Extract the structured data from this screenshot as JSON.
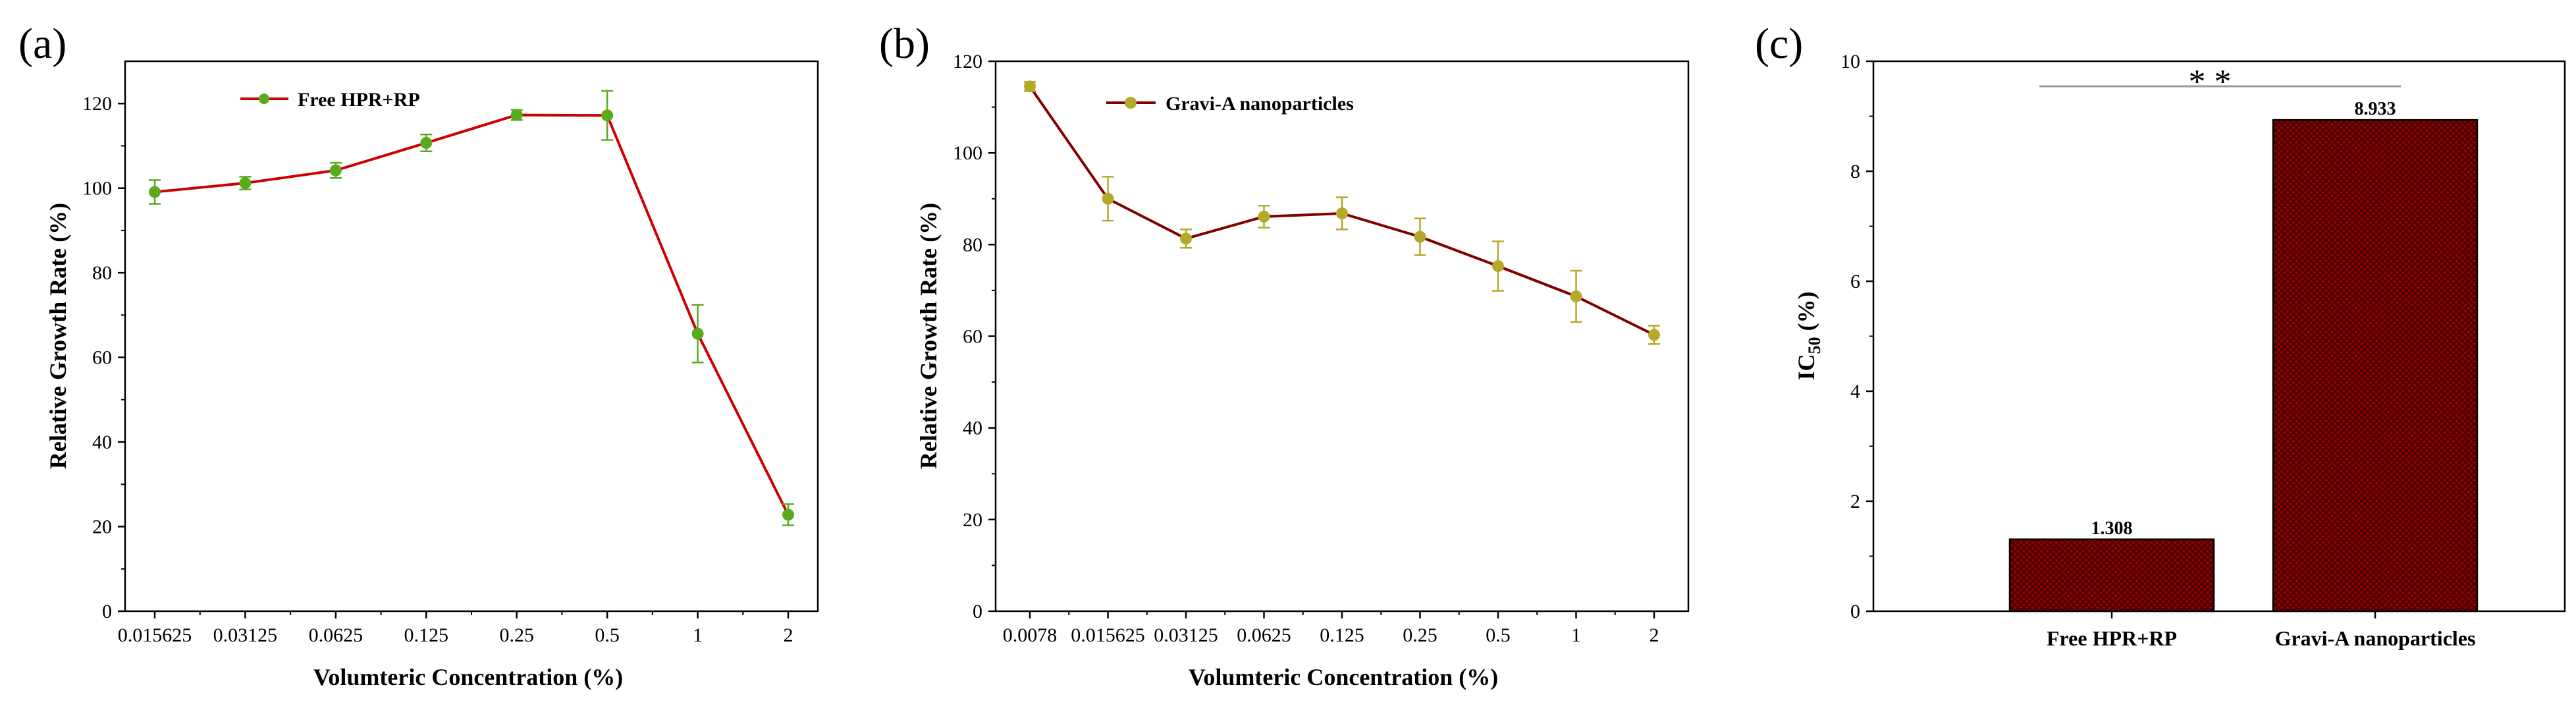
{
  "figure": {
    "panels": [
      {
        "panel_label": "(a)",
        "ylabel": "Relative Growth Rate (%)",
        "xlabel": "Volumteric Concentration (%)",
        "legend": "Free HPR+RP"
      },
      {
        "panel_label": "(b)",
        "ylabel": "Relative Growth Rate (%)",
        "xlabel": "Volumteric Concentration (%)",
        "legend": "Gravi-A nanoparticles"
      },
      {
        "panel_label": "(c)",
        "ylabel_main": "IC",
        "ylabel_sub": "50",
        "ylabel_unit": " (%)",
        "significance": "* *"
      }
    ]
  },
  "chart_data": [
    {
      "type": "line",
      "title": "(a)",
      "xlabel": "Volumteric Concentration (%)",
      "ylabel": "Relative Growth Rate (%)",
      "categories": [
        "0.015625",
        "0.03125",
        "0.0625",
        "0.125",
        "0.25",
        "0.5",
        "1",
        "2"
      ],
      "series": [
        {
          "name": "Free HPR+RP",
          "values": [
            99.1,
            101.2,
            104.2,
            110.7,
            117.3,
            117.2,
            65.6,
            22.8
          ],
          "errors": [
            2.8,
            1.5,
            1.8,
            2.0,
            1.2,
            5.8,
            6.8,
            2.5
          ],
          "color": "#cc0000",
          "marker_color": "#5aaa1e"
        }
      ],
      "ylim": [
        0,
        130
      ],
      "yticks": [
        0,
        20,
        40,
        60,
        80,
        100,
        120
      ],
      "legend_position": "top-left"
    },
    {
      "type": "line",
      "title": "(b)",
      "xlabel": "Volumteric Concentration (%)",
      "ylabel": "Relative Growth Rate (%)",
      "categories": [
        "0.0078",
        "0.015625",
        "0.03125",
        "0.0625",
        "0.125",
        "0.25",
        "0.5",
        "1",
        "2"
      ],
      "series": [
        {
          "name": "Gravi-A nanoparticles",
          "values": [
            114.5,
            90.0,
            81.3,
            86.1,
            86.8,
            81.7,
            75.3,
            68.7,
            60.3
          ],
          "errors": [
            1.0,
            4.8,
            2.0,
            2.4,
            3.5,
            4.0,
            5.4,
            5.6,
            2.0
          ],
          "color": "#800000",
          "marker_color": "#b5a92a"
        }
      ],
      "ylim": [
        0,
        120
      ],
      "yticks": [
        0,
        20,
        40,
        60,
        80,
        100,
        120
      ],
      "legend_position": "top-left"
    },
    {
      "type": "bar",
      "title": "(c)",
      "xlabel": "",
      "ylabel": "IC50 (%)",
      "categories": [
        "Free HPR+RP",
        "Gravi-A nanoparticles"
      ],
      "values": [
        1.308,
        8.933
      ],
      "value_labels": [
        "1.308",
        "8.933"
      ],
      "ylim": [
        0,
        10
      ],
      "yticks": [
        0,
        2,
        4,
        6,
        8,
        10
      ],
      "bar_color": "#8b0000",
      "annotation": "* *"
    }
  ]
}
